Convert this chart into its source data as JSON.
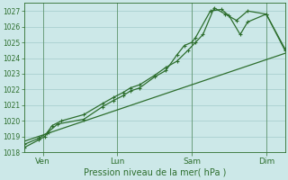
{
  "title": "Pression niveau de la mer( hPa )",
  "bg_color": "#cce8e8",
  "grid_color": "#aacfcf",
  "line_color": "#2d6e2d",
  "ylim": [
    1018,
    1027.5
  ],
  "yticks": [
    1018,
    1019,
    1020,
    1021,
    1022,
    1023,
    1024,
    1025,
    1026,
    1027
  ],
  "day_labels": [
    "Ven",
    "Lun",
    "Sam",
    "Dim"
  ],
  "day_positions": [
    0.5,
    2.5,
    4.5,
    6.5
  ],
  "xlim": [
    0,
    7
  ],
  "series1_x": [
    0.0,
    0.4,
    0.55,
    0.65,
    0.9,
    1.6,
    2.1,
    2.4,
    2.65,
    2.85,
    3.1,
    3.5,
    3.8,
    4.1,
    4.3,
    4.5,
    4.6,
    5.0,
    5.3,
    5.5,
    5.8,
    6.0,
    6.5,
    7.0
  ],
  "series1_y": [
    1018.3,
    1018.8,
    1019.0,
    1019.3,
    1019.8,
    1020.1,
    1020.9,
    1021.3,
    1021.6,
    1021.9,
    1022.1,
    1022.8,
    1023.2,
    1024.2,
    1024.8,
    1025.0,
    1025.3,
    1027.0,
    1027.1,
    1026.7,
    1025.5,
    1026.3,
    1026.8,
    1024.6
  ],
  "series2_x": [
    0.0,
    0.4,
    0.6,
    0.75,
    1.0,
    1.6,
    2.1,
    2.4,
    2.65,
    2.85,
    3.1,
    3.5,
    3.8,
    4.1,
    4.4,
    4.6,
    4.8,
    5.1,
    5.4,
    5.7,
    6.0,
    6.5,
    7.0
  ],
  "series2_y": [
    1018.5,
    1018.9,
    1019.2,
    1019.7,
    1020.0,
    1020.4,
    1021.1,
    1021.5,
    1021.8,
    1022.1,
    1022.3,
    1022.9,
    1023.4,
    1023.8,
    1024.5,
    1025.0,
    1025.5,
    1027.2,
    1026.8,
    1026.4,
    1027.0,
    1026.8,
    1024.5
  ],
  "trend_x": [
    0.0,
    7.0
  ],
  "trend_y": [
    1018.7,
    1024.3
  ]
}
